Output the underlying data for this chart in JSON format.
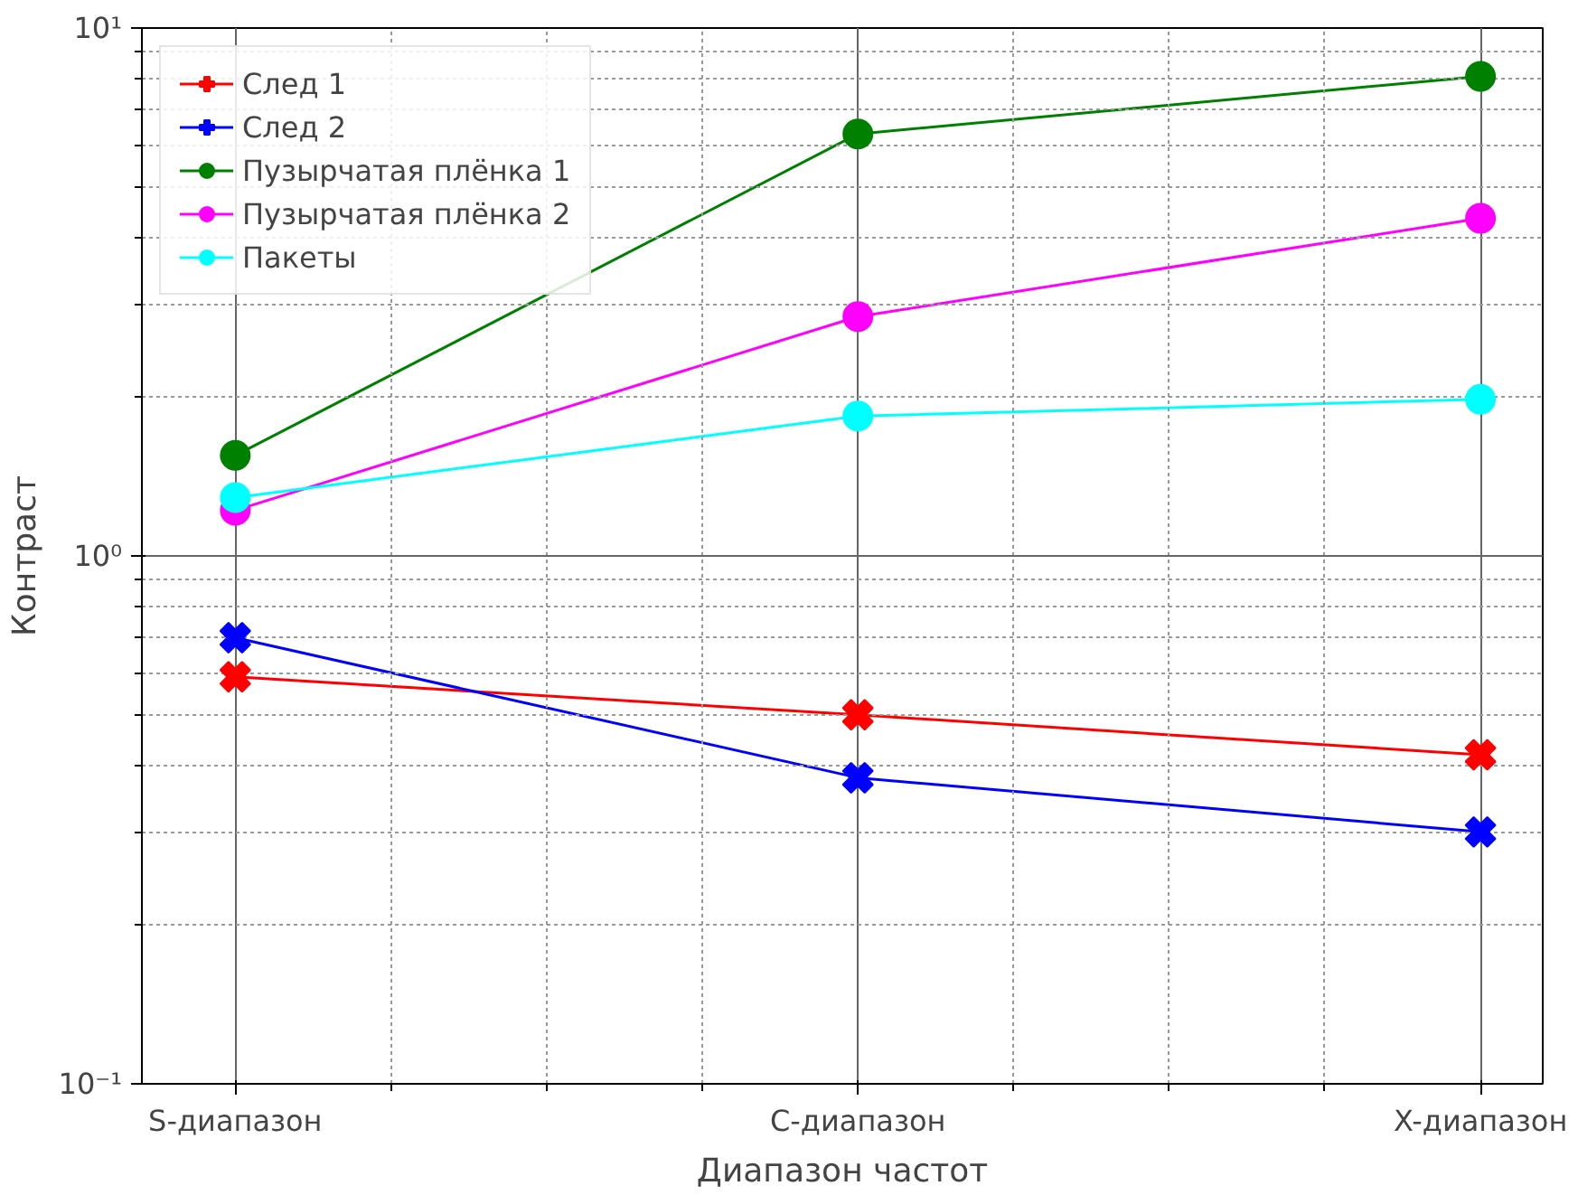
{
  "chart_data": {
    "type": "line",
    "xlabel": "Диапазон частот",
    "ylabel": "Контраст",
    "categories": [
      "S-диапазон",
      "C-диапазон",
      "X-диапазон"
    ],
    "series": [
      {
        "name": "След 1",
        "color": "#ff0000",
        "marker": "cross",
        "values": [
          0.59,
          0.5,
          0.42
        ]
      },
      {
        "name": "След 2",
        "color": "#0000ff",
        "marker": "cross",
        "values": [
          0.7,
          0.38,
          0.3
        ]
      },
      {
        "name": "Пузырчатая плёнка 1",
        "color": "#008000",
        "marker": "circle",
        "values": [
          1.55,
          6.3,
          8.1
        ]
      },
      {
        "name": "Пузырчатая плёнка 2",
        "color": "#ff00ff",
        "marker": "circle",
        "values": [
          1.22,
          2.84,
          4.36
        ]
      },
      {
        "name": "Пакеты",
        "color": "#00ffff",
        "marker": "circle",
        "values": [
          1.29,
          1.84,
          1.98
        ]
      }
    ],
    "log": "y",
    "ylim": [
      0.1,
      10
    ],
    "yticks": [
      {
        "value": 0.1,
        "label": "10⁻¹"
      },
      {
        "value": 1,
        "label": "10⁰"
      },
      {
        "value": 10,
        "label": "10¹"
      }
    ],
    "grid": true,
    "legend": "top left"
  }
}
